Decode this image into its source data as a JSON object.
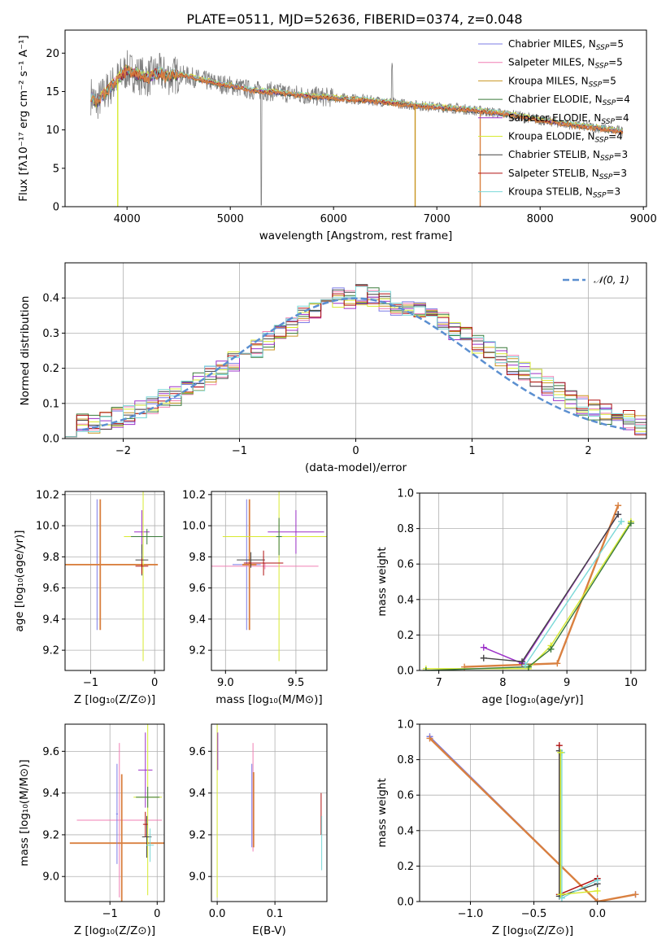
{
  "figure": {
    "title": "PLATE=0511, MJD=52636, FIBERID=0374, z=0.048"
  },
  "colors": {
    "chabrier_miles": "#7b7be6",
    "salpeter_miles": "#f07fb4",
    "kroupa_miles": "#c89520",
    "chabrier_elodie": "#3a7a3a",
    "salpeter_elodie": "#9b30c8",
    "kroupa_elodie": "#d8ea30",
    "chabrier_stelib": "#444444",
    "salpeter_stelib": "#b01010",
    "kroupa_stelib": "#7ad8d8",
    "thick_orange": "#d98040",
    "normal_curve": "#5b8fd0",
    "grid": "#b0b0b0"
  },
  "chart_data": [
    {
      "id": "spectrum",
      "type": "line",
      "title": "PLATE=0511, MJD=52636, FIBERID=0374, z=0.048",
      "xlabel": "wavelength [Angstrom, rest frame]",
      "ylabel": "Flux [fλ10⁻¹⁷ erg cm⁻² s⁻¹ A⁻¹]",
      "xlim": [
        3400,
        9030
      ],
      "ylim": [
        0,
        23
      ],
      "xticks": [
        "4000",
        "5000",
        "6000",
        "7000",
        "8000",
        "9000"
      ],
      "yticks": [
        "0",
        "5",
        "10",
        "15",
        "20"
      ],
      "legend_position": "top-right",
      "series": [
        {
          "name": "Chabrier MILES, N",
          "sub": "SSP",
          "suffix": "=5",
          "color_key": "chabrier_miles"
        },
        {
          "name": "Salpeter MILES, N",
          "sub": "SSP",
          "suffix": "=5",
          "color_key": "salpeter_miles"
        },
        {
          "name": "Kroupa MILES, N",
          "sub": "SSP",
          "suffix": "=5",
          "color_key": "kroupa_miles"
        },
        {
          "name": "Chabrier ELODIE, N",
          "sub": "SSP",
          "suffix": "=4",
          "color_key": "chabrier_elodie"
        },
        {
          "name": "Salpeter ELODIE, N",
          "sub": "SSP",
          "suffix": "=4",
          "color_key": "salpeter_elodie"
        },
        {
          "name": "Kroupa ELODIE, N",
          "sub": "SSP",
          "suffix": "=4",
          "color_key": "kroupa_elodie"
        },
        {
          "name": "Chabrier STELIB, N",
          "sub": "SSP",
          "suffix": "=3",
          "color_key": "chabrier_stelib"
        },
        {
          "name": "Salpeter STELIB, N",
          "sub": "SSP",
          "suffix": "=3",
          "color_key": "salpeter_stelib"
        },
        {
          "name": "Kroupa STELIB, N",
          "sub": "SSP",
          "suffix": "=3",
          "color_key": "kroupa_stelib"
        }
      ],
      "continuum": {
        "x": [
          3650,
          3700,
          3800,
          3900,
          4000,
          4100,
          4200,
          4300,
          4400,
          4500,
          4600,
          4700,
          4800,
          4900,
          5000,
          5200,
          5400,
          5600,
          5800,
          6000,
          6200,
          6400,
          6600,
          6800,
          7000,
          7200,
          7400,
          7600,
          7800,
          8000,
          8200,
          8400,
          8600,
          8800
        ],
        "y": [
          14.5,
          13.5,
          15.0,
          16.5,
          17.8,
          17.2,
          16.8,
          17.5,
          17.0,
          17.2,
          17.0,
          16.6,
          16.3,
          16.0,
          15.8,
          15.2,
          15.0,
          14.7,
          14.4,
          14.2,
          14.0,
          13.8,
          13.5,
          13.2,
          13.0,
          12.8,
          12.5,
          12.2,
          11.8,
          11.3,
          10.9,
          10.5,
          10.2,
          9.8
        ]
      },
      "dropouts": [
        {
          "x": 3910,
          "color_key": "kroupa_elodie"
        },
        {
          "x": 6790,
          "color_key": "kroupa_miles"
        },
        {
          "x": 7420,
          "color_key": "thick_orange"
        }
      ]
    },
    {
      "id": "residuals",
      "type": "line",
      "xlabel": "(data-model)/error",
      "ylabel": "Normed distribution",
      "xlim": [
        -2.5,
        2.5
      ],
      "ylim": [
        0,
        0.5
      ],
      "xticks": [
        "−2",
        "−1",
        "0",
        "1",
        "2"
      ],
      "yticks": [
        "0.0",
        "0.1",
        "0.2",
        "0.3",
        "0.4"
      ],
      "legend_position": "top-right",
      "normal_label": "𝒩(0, 1)",
      "bin_width": 0.1,
      "bins_start": -2.5,
      "hist_base": [
        0.035,
        0.04,
        0.045,
        0.05,
        0.06,
        0.07,
        0.08,
        0.095,
        0.11,
        0.12,
        0.14,
        0.16,
        0.18,
        0.2,
        0.22,
        0.24,
        0.26,
        0.28,
        0.3,
        0.32,
        0.35,
        0.37,
        0.39,
        0.4,
        0.4,
        0.41,
        0.4,
        0.39,
        0.38,
        0.37,
        0.36,
        0.34,
        0.33,
        0.31,
        0.29,
        0.27,
        0.25,
        0.23,
        0.21,
        0.19,
        0.17,
        0.15,
        0.13,
        0.11,
        0.095,
        0.08,
        0.07,
        0.06,
        0.05,
        0.04
      ]
    },
    {
      "id": "age_vs_Z",
      "type": "scatter",
      "xlabel": "Z [log₁₀(Z/Z⊙)]",
      "ylabel": "age  [log₁₀(age/yr)]",
      "xlim": [
        -1.4,
        0.15
      ],
      "ylim": [
        9.07,
        10.22
      ],
      "xticks": [
        "−1",
        "0"
      ],
      "yticks": [
        "9.2",
        "9.4",
        "9.6",
        "9.8",
        "10.0",
        "10.2"
      ],
      "points": [
        {
          "x": -0.9,
          "y": 9.75,
          "xerr": 0.85,
          "yerr": 0.42,
          "color_key": "chabrier_miles"
        },
        {
          "x": -0.85,
          "y": 9.75,
          "xerr": 0.9,
          "yerr": 0.42,
          "color_key": "thick_orange"
        },
        {
          "x": -0.2,
          "y": 9.96,
          "xerr": 0.12,
          "yerr": 0.14,
          "color_key": "salpeter_elodie"
        },
        {
          "x": -0.18,
          "y": 9.93,
          "xerr": 0.3,
          "yerr": 0.8,
          "color_key": "kroupa_elodie"
        },
        {
          "x": -0.2,
          "y": 9.78,
          "xerr": 0.1,
          "yerr": 0.1,
          "color_key": "chabrier_stelib"
        },
        {
          "x": -0.2,
          "y": 9.74,
          "xerr": 0.1,
          "yerr": 0.05,
          "color_key": "salpeter_stelib"
        },
        {
          "x": -0.12,
          "y": 9.93,
          "xerr": 0.25,
          "yerr": 0.05,
          "color_key": "chabrier_elodie"
        }
      ]
    },
    {
      "id": "age_vs_mass",
      "type": "scatter",
      "xlabel": "mass [log₁₀(M/M⊙)]",
      "ylabel": "",
      "xlim": [
        8.9,
        9.72
      ],
      "ylim": [
        9.07,
        10.22
      ],
      "xticks": [
        "9.0",
        "9.5"
      ],
      "yticks": [
        "9.2",
        "9.4",
        "9.6",
        "9.8",
        "10.0",
        "10.2"
      ],
      "points": [
        {
          "x": 9.15,
          "y": 9.75,
          "xerr": 0.1,
          "yerr": 0.42,
          "color_key": "chabrier_miles"
        },
        {
          "x": 9.28,
          "y": 9.74,
          "xerr": 0.38,
          "yerr": 0.02,
          "color_key": "salpeter_miles"
        },
        {
          "x": 9.17,
          "y": 9.75,
          "xerr": 0.05,
          "yerr": 0.42,
          "color_key": "thick_orange"
        },
        {
          "x": 9.5,
          "y": 9.96,
          "xerr": 0.2,
          "yerr": 0.14,
          "color_key": "salpeter_elodie"
        },
        {
          "x": 9.38,
          "y": 9.93,
          "xerr": 0.4,
          "yerr": 0.8,
          "color_key": "kroupa_elodie"
        },
        {
          "x": 9.18,
          "y": 9.78,
          "xerr": 0.1,
          "yerr": 0.05,
          "color_key": "chabrier_stelib"
        },
        {
          "x": 9.27,
          "y": 9.76,
          "xerr": 0.14,
          "yerr": 0.08,
          "color_key": "salpeter_stelib"
        },
        {
          "x": 9.38,
          "y": 9.93,
          "xerr": 0.02,
          "yerr": 0.12,
          "color_key": "chabrier_elodie"
        }
      ]
    },
    {
      "id": "weight_vs_age",
      "type": "line",
      "xlabel": "age  [log₁₀(age/yr)]",
      "ylabel": "mass weight",
      "xlim": [
        6.7,
        10.23
      ],
      "ylim": [
        0,
        1.0
      ],
      "xticks": [
        "7",
        "8",
        "9",
        "10"
      ],
      "yticks": [
        "0.0",
        "0.2",
        "0.4",
        "0.6",
        "0.8",
        "1.0"
      ],
      "series": [
        {
          "x": [
            7.4,
            8.85,
            9.8
          ],
          "y": [
            0.02,
            0.04,
            0.93
          ],
          "color_key": "thick_orange",
          "thick": true
        },
        {
          "x": [
            7.7,
            8.3,
            9.8
          ],
          "y": [
            0.13,
            0.04,
            0.88
          ],
          "color_key": "salpeter_elodie"
        },
        {
          "x": [
            7.7,
            8.3,
            9.8
          ],
          "y": [
            0.07,
            0.05,
            0.88
          ],
          "color_key": "chabrier_stelib"
        },
        {
          "x": [
            6.8,
            8.4,
            8.75,
            10.0
          ],
          "y": [
            0.01,
            0.01,
            0.14,
            0.84
          ],
          "color_key": "kroupa_elodie"
        },
        {
          "x": [
            6.8,
            8.4,
            8.75,
            10.0
          ],
          "y": [
            0.0,
            0.02,
            0.12,
            0.83
          ],
          "color_key": "chabrier_elodie"
        },
        {
          "x": [
            8.35,
            9.85
          ],
          "y": [
            0.03,
            0.84
          ],
          "color_key": "kroupa_stelib"
        }
      ]
    },
    {
      "id": "mass_vs_Z",
      "type": "scatter",
      "xlabel": "Z [log₁₀(Z/Z⊙)]",
      "ylabel": "mass [log₁₀(M/M⊙)]",
      "xlim": [
        -1.95,
        0.15
      ],
      "ylim": [
        8.88,
        9.73
      ],
      "xticks": [
        "−1",
        "0"
      ],
      "yticks": [
        "9.0",
        "9.2",
        "9.4",
        "9.6"
      ],
      "points": [
        {
          "x": -0.8,
          "y": 9.27,
          "xerr": 0.9,
          "yerr": 0.37,
          "color_key": "salpeter_miles"
        },
        {
          "x": -0.75,
          "y": 9.16,
          "xerr": 1.1,
          "yerr": 0.33,
          "color_key": "thick_orange"
        },
        {
          "x": -0.85,
          "y": 9.3,
          "xerr": 0.02,
          "yerr": 0.24,
          "color_key": "chabrier_miles"
        },
        {
          "x": -0.25,
          "y": 9.51,
          "xerr": 0.15,
          "yerr": 0.18,
          "color_key": "salpeter_elodie"
        },
        {
          "x": -0.2,
          "y": 9.38,
          "xerr": 0.3,
          "yerr": 0.47,
          "color_key": "kroupa_elodie"
        },
        {
          "x": -0.2,
          "y": 9.38,
          "xerr": 0.25,
          "yerr": 0.05,
          "color_key": "chabrier_elodie"
        },
        {
          "x": -0.22,
          "y": 9.19,
          "xerr": 0.1,
          "yerr": 0.1,
          "color_key": "chabrier_stelib"
        },
        {
          "x": -0.25,
          "y": 9.25,
          "xerr": 0.05,
          "yerr": 0.06,
          "color_key": "salpeter_stelib"
        },
        {
          "x": -0.15,
          "y": 9.15,
          "xerr": 0.08,
          "yerr": 0.08,
          "color_key": "kroupa_stelib"
        }
      ]
    },
    {
      "id": "mass_vs_ebv",
      "type": "scatter",
      "xlabel": "E(B-V)",
      "ylabel": "",
      "xlim": [
        -0.01,
        0.19
      ],
      "ylim": [
        8.88,
        9.73
      ],
      "xticks": [
        "0.0",
        "0.1"
      ],
      "yticks": [
        "9.0",
        "9.2",
        "9.4",
        "9.6"
      ],
      "points": [
        {
          "x": 0.0,
          "y": 9.45,
          "xerr": 0,
          "yerr": 0.55,
          "color_key": "kroupa_elodie"
        },
        {
          "x": 0.001,
          "y": 9.6,
          "xerr": 0,
          "yerr": 0.09,
          "color_key": "salpeter_elodie"
        },
        {
          "x": 0.06,
          "y": 9.34,
          "xerr": 0,
          "yerr": 0.2,
          "color_key": "chabrier_miles"
        },
        {
          "x": 0.062,
          "y": 9.38,
          "xerr": 0,
          "yerr": 0.26,
          "color_key": "salpeter_miles"
        },
        {
          "x": 0.063,
          "y": 9.32,
          "xerr": 0,
          "yerr": 0.18,
          "color_key": "thick_orange"
        },
        {
          "x": 0.18,
          "y": 9.3,
          "xerr": 0,
          "yerr": 0.1,
          "color_key": "salpeter_stelib"
        },
        {
          "x": 0.181,
          "y": 9.16,
          "xerr": 0,
          "yerr": 0.13,
          "color_key": "kroupa_stelib"
        }
      ]
    },
    {
      "id": "weight_vs_Z",
      "type": "line",
      "xlabel": "Z [log₁₀(Z/Z⊙)]",
      "ylabel": "mass weight",
      "xlim": [
        -1.4,
        0.38
      ],
      "ylim": [
        0,
        1.0
      ],
      "xticks": [
        "−1.0",
        "−0.5",
        "0.0"
      ],
      "yticks": [
        "0.0",
        "0.2",
        "0.4",
        "0.6",
        "0.8",
        "1.0"
      ],
      "series": [
        {
          "x": [
            -1.32,
            0.0,
            0.3
          ],
          "y": [
            0.93,
            0.0,
            0.04
          ],
          "color_key": "chabrier_miles"
        },
        {
          "x": [
            -1.32,
            0.0,
            0.3
          ],
          "y": [
            0.92,
            0.0,
            0.04
          ],
          "color_key": "thick_orange",
          "thick": true
        },
        {
          "x": [
            -0.3,
            -0.3,
            0.0
          ],
          "y": [
            0.88,
            0.04,
            0.13
          ],
          "color_key": "salpeter_stelib"
        },
        {
          "x": [
            -0.3,
            -0.3,
            0.0
          ],
          "y": [
            0.85,
            0.03,
            0.1
          ],
          "color_key": "chabrier_stelib"
        },
        {
          "x": [
            -0.28,
            -0.28,
            0.0
          ],
          "y": [
            0.84,
            0.02,
            0.12
          ],
          "color_key": "kroupa_stelib"
        },
        {
          "x": [
            -0.29,
            -0.29,
            0.0
          ],
          "y": [
            0.84,
            0.04,
            0.06
          ],
          "color_key": "kroupa_elodie"
        }
      ]
    }
  ]
}
